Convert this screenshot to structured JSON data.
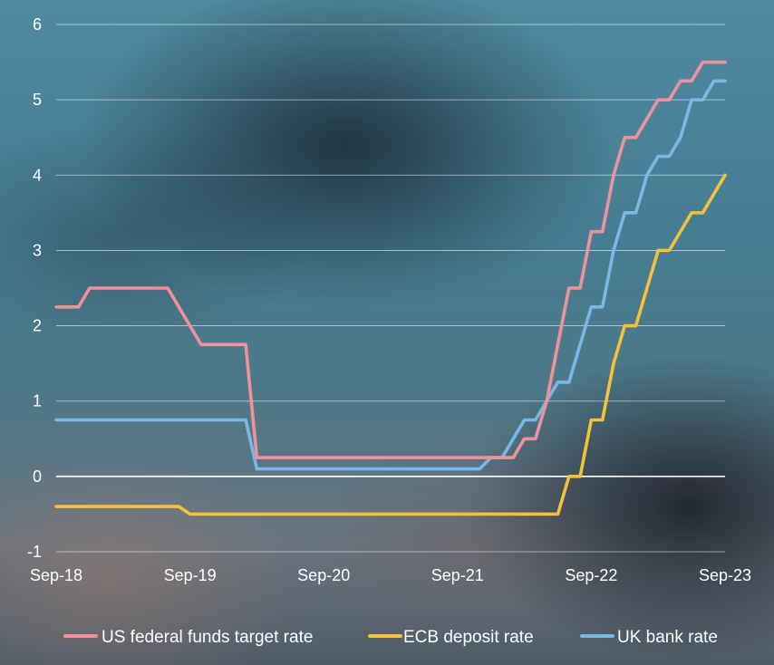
{
  "chart_data": {
    "type": "line",
    "title": "",
    "xlabel": "",
    "ylabel": "",
    "ylim": [
      -1,
      6
    ],
    "xlim": [
      "2018-09",
      "2023-09"
    ],
    "yticks": [
      "-1",
      "0",
      "1",
      "2",
      "3",
      "4",
      "5",
      "6"
    ],
    "xticks": [
      "Sep-18",
      "Sep-19",
      "Sep-20",
      "Sep-21",
      "Sep-22",
      "Sep-23"
    ],
    "grid": true,
    "legend_position": "bottom",
    "series": [
      {
        "name": "US federal funds target rate",
        "color": "#f0919a",
        "points": [
          [
            "2018-09",
            2.25
          ],
          [
            "2018-11",
            2.25
          ],
          [
            "2018-12",
            2.5
          ],
          [
            "2019-07",
            2.5
          ],
          [
            "2019-08",
            2.25
          ],
          [
            "2019-09",
            2.0
          ],
          [
            "2019-10",
            1.75
          ],
          [
            "2020-02",
            1.75
          ],
          [
            "2020-03",
            0.25
          ],
          [
            "2022-02",
            0.25
          ],
          [
            "2022-03",
            0.5
          ],
          [
            "2022-04",
            0.5
          ],
          [
            "2022-05",
            1.0
          ],
          [
            "2022-06",
            1.75
          ],
          [
            "2022-07",
            2.5
          ],
          [
            "2022-08",
            2.5
          ],
          [
            "2022-09",
            3.25
          ],
          [
            "2022-10",
            3.25
          ],
          [
            "2022-11",
            4.0
          ],
          [
            "2022-12",
            4.5
          ],
          [
            "2023-01",
            4.5
          ],
          [
            "2023-02",
            4.75
          ],
          [
            "2023-03",
            5.0
          ],
          [
            "2023-04",
            5.0
          ],
          [
            "2023-05",
            5.25
          ],
          [
            "2023-06",
            5.25
          ],
          [
            "2023-07",
            5.5
          ],
          [
            "2023-09",
            5.5
          ]
        ]
      },
      {
        "name": "ECB deposit rate",
        "color": "#f5c13a",
        "points": [
          [
            "2018-09",
            -0.4
          ],
          [
            "2019-08",
            -0.4
          ],
          [
            "2019-09",
            -0.5
          ],
          [
            "2022-06",
            -0.5
          ],
          [
            "2022-07",
            0.0
          ],
          [
            "2022-08",
            0.0
          ],
          [
            "2022-09",
            0.75
          ],
          [
            "2022-10",
            0.75
          ],
          [
            "2022-11",
            1.5
          ],
          [
            "2022-12",
            2.0
          ],
          [
            "2023-01",
            2.0
          ],
          [
            "2023-02",
            2.5
          ],
          [
            "2023-03",
            3.0
          ],
          [
            "2023-04",
            3.0
          ],
          [
            "2023-05",
            3.25
          ],
          [
            "2023-06",
            3.5
          ],
          [
            "2023-07",
            3.5
          ],
          [
            "2023-08",
            3.75
          ],
          [
            "2023-09",
            4.0
          ]
        ]
      },
      {
        "name": "UK bank rate",
        "color": "#7ab6e6",
        "points": [
          [
            "2018-09",
            0.75
          ],
          [
            "2020-02",
            0.75
          ],
          [
            "2020-03",
            0.1
          ],
          [
            "2021-11",
            0.1
          ],
          [
            "2021-12",
            0.25
          ],
          [
            "2022-01",
            0.25
          ],
          [
            "2022-02",
            0.5
          ],
          [
            "2022-03",
            0.75
          ],
          [
            "2022-04",
            0.75
          ],
          [
            "2022-05",
            1.0
          ],
          [
            "2022-06",
            1.25
          ],
          [
            "2022-07",
            1.25
          ],
          [
            "2022-08",
            1.75
          ],
          [
            "2022-09",
            2.25
          ],
          [
            "2022-10",
            2.25
          ],
          [
            "2022-11",
            3.0
          ],
          [
            "2022-12",
            3.5
          ],
          [
            "2023-01",
            3.5
          ],
          [
            "2023-02",
            4.0
          ],
          [
            "2023-03",
            4.25
          ],
          [
            "2023-04",
            4.25
          ],
          [
            "2023-05",
            4.5
          ],
          [
            "2023-06",
            5.0
          ],
          [
            "2023-07",
            5.0
          ],
          [
            "2023-08",
            5.25
          ],
          [
            "2023-09",
            5.25
          ]
        ]
      }
    ]
  },
  "colors": {
    "gridline": "#ffffff",
    "zero_line": "#ffffff",
    "text": "#ffffff"
  }
}
